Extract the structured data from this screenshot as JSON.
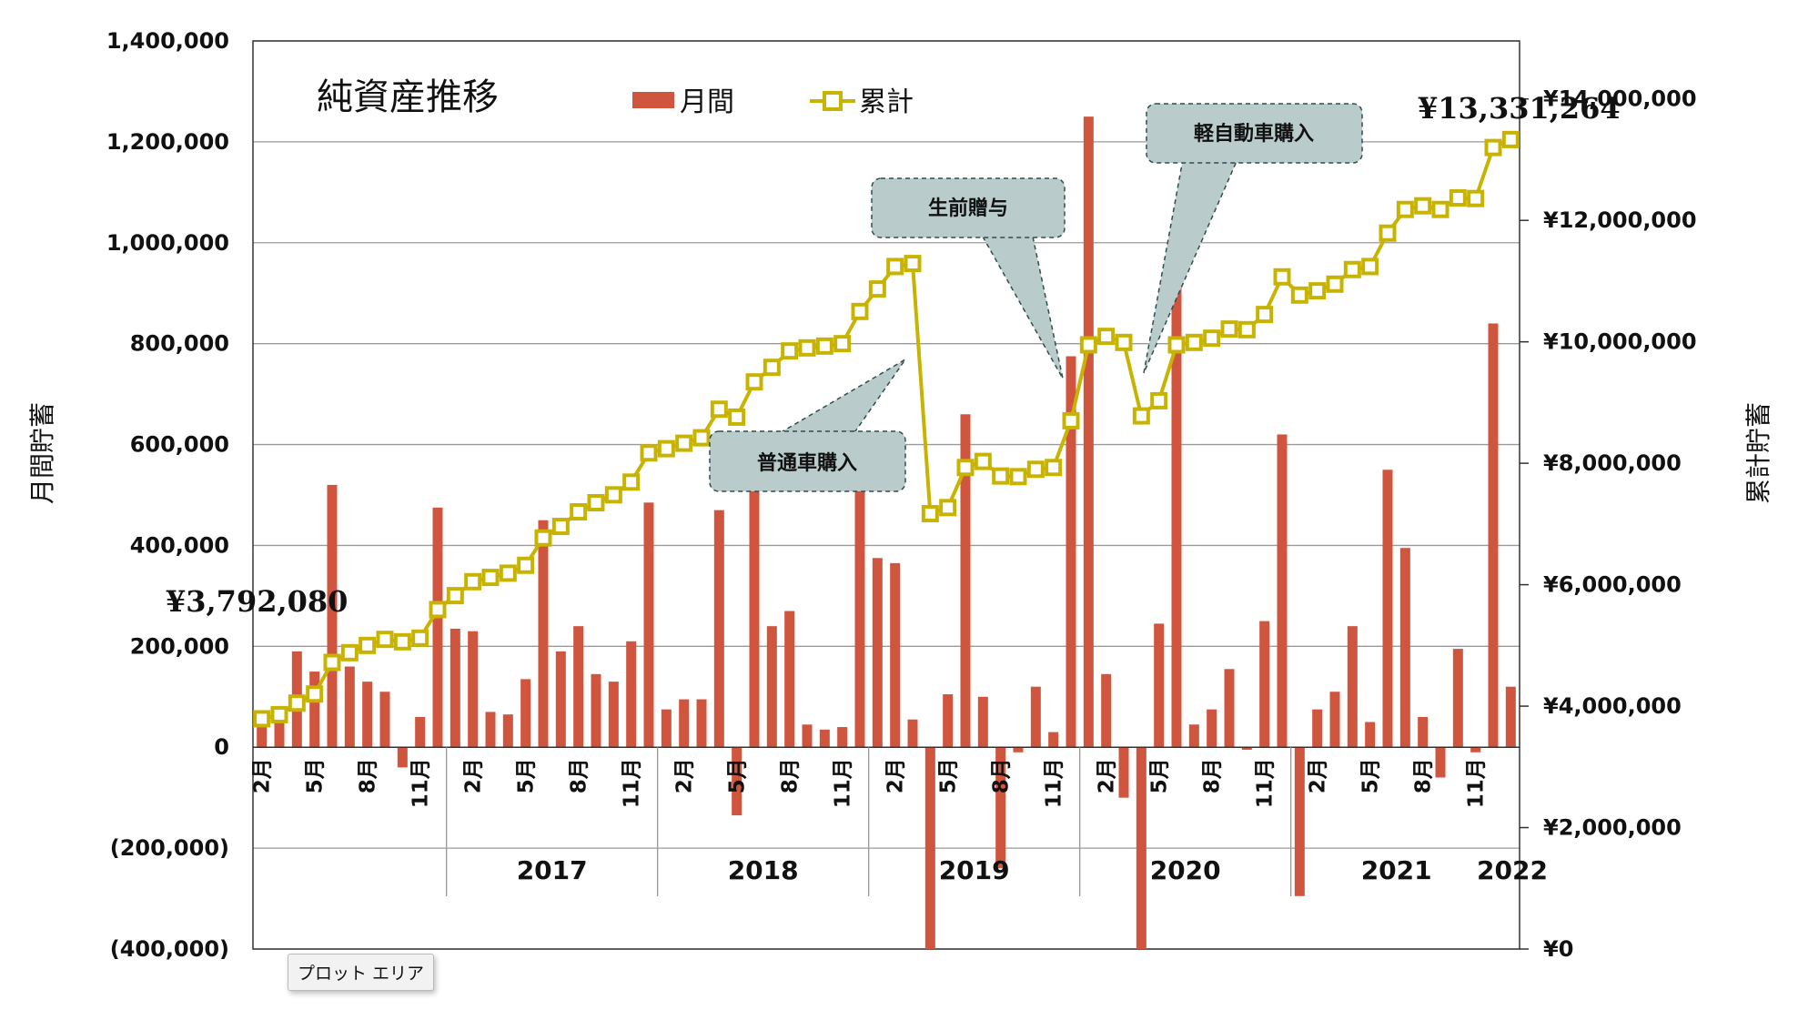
{
  "chart_data": {
    "type": "bar",
    "title": "純資産推移",
    "ylabel_left": "月間貯蓄",
    "ylabel_right": "累計貯蓄",
    "ylim_left": [
      -400000,
      1400000
    ],
    "ylim_right": [
      0,
      15000000
    ],
    "left_ticks": [
      "1,400,000",
      "1,200,000",
      "1,000,000",
      "800,000",
      "600,000",
      "400,000",
      "200,000",
      "0",
      "(200,000)",
      "(400,000)"
    ],
    "right_ticks": [
      "¥14,000,000",
      "¥12,000,000",
      "¥10,000,000",
      "¥8,000,000",
      "¥6,000,000",
      "¥4,000,000",
      "¥2,000,000",
      "¥0"
    ],
    "month_labels": [
      "2月",
      "5月",
      "8月",
      "11月"
    ],
    "years": [
      "2017",
      "2018",
      "2019",
      "2020",
      "2021",
      "2022"
    ],
    "legend": {
      "bar": "月間",
      "line": "累計"
    },
    "bar_color": "#d0553e",
    "line_color": "#c7b300",
    "series": [
      {
        "name": "月間",
        "kind": "bar",
        "values": [
          60000,
          70000,
          190000,
          150000,
          520000,
          160000,
          130000,
          110000,
          -40000,
          60000,
          475000,
          235000,
          230000,
          70000,
          65000,
          135000,
          450000,
          190000,
          240000,
          145000,
          130000,
          210000,
          485000,
          75000,
          95000,
          95000,
          470000,
          -135000,
          585000,
          240000,
          270000,
          45000,
          35000,
          40000,
          535000,
          375000,
          365000,
          55000,
          -400000,
          105000,
          660000,
          100000,
          -240000,
          -10000,
          120000,
          30000,
          775000,
          1250000,
          145000,
          -100000,
          -400000,
          245000,
          925000,
          45000,
          75000,
          155000,
          -5000,
          250000,
          620000,
          -295000,
          75000,
          110000,
          240000,
          50000,
          550000,
          395000,
          60000,
          -60000,
          195000,
          -10000,
          840000,
          120000
        ]
      },
      {
        "name": "累計",
        "kind": "line",
        "values": [
          3792080,
          3860000,
          4050000,
          4200000,
          4720000,
          4880000,
          5000000,
          5100000,
          5060000,
          5120000,
          5590000,
          5820000,
          6050000,
          6120000,
          6190000,
          6320000,
          6770000,
          6960000,
          7200000,
          7350000,
          7480000,
          7690000,
          8170000,
          8240000,
          8330000,
          8420000,
          8890000,
          8760000,
          9340000,
          9580000,
          9850000,
          9900000,
          9930000,
          9970000,
          10500000,
          10870000,
          11240000,
          11290000,
          7170000,
          7270000,
          7930000,
          8030000,
          7790000,
          7780000,
          7900000,
          7930000,
          8700000,
          9950000,
          10090000,
          9990000,
          8780000,
          9030000,
          9950000,
          9990000,
          10060000,
          10210000,
          10200000,
          10450000,
          11070000,
          10770000,
          10840000,
          10950000,
          11190000,
          11240000,
          11790000,
          12180000,
          12240000,
          12180000,
          12370000,
          12360000,
          13200000,
          13331264
        ]
      }
    ],
    "annotations": [
      {
        "text": "¥3,792,080"
      },
      {
        "text": "¥13,331,264"
      },
      {
        "text": "普通車購入"
      },
      {
        "text": "生前贈与"
      },
      {
        "text": "軽自動車購入"
      }
    ]
  },
  "ui": {
    "tooltip": "プロット エリア"
  }
}
